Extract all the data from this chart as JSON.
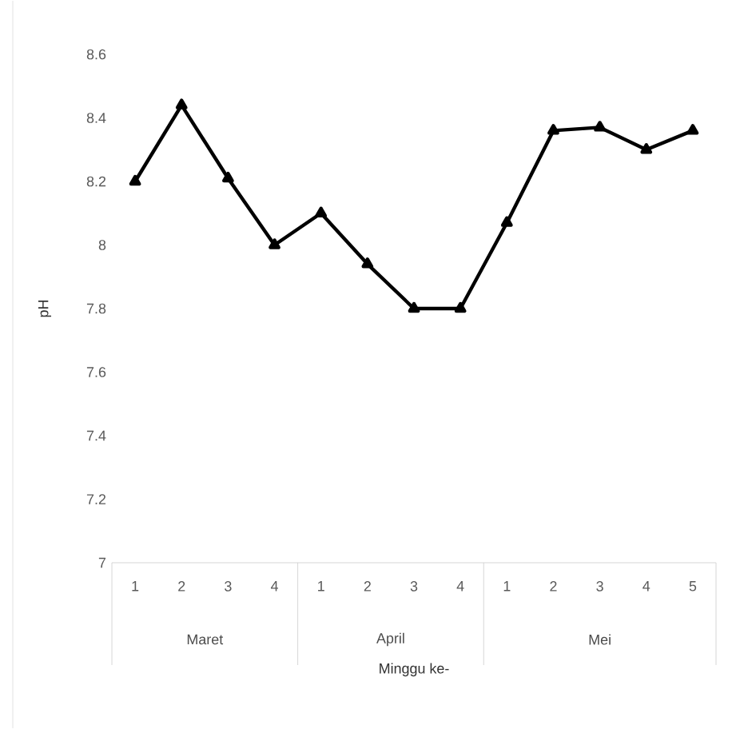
{
  "chart_data": {
    "type": "line",
    "xlabel": "Minggu ke-",
    "ylabel": "pH",
    "categories": [
      "1",
      "2",
      "3",
      "4",
      "1",
      "2",
      "3",
      "4",
      "1",
      "2",
      "3",
      "4",
      "5"
    ],
    "series": [
      {
        "color": "#000000",
        "values": [
          8.2,
          8.44,
          8.21,
          8.0,
          8.1,
          7.94,
          7.8,
          7.8,
          8.07,
          8.36,
          8.37,
          8.3,
          8.36
        ]
      }
    ],
    "ylim": [
      7,
      8.6
    ],
    "yticks": [
      7,
      7.2,
      7.4,
      7.6,
      7.8,
      8,
      8.2,
      8.4,
      8.6
    ],
    "marker": "triangle",
    "line_style": "solid",
    "grid": false,
    "annotations": [
      "Maret",
      "April",
      "Mei"
    ]
  }
}
